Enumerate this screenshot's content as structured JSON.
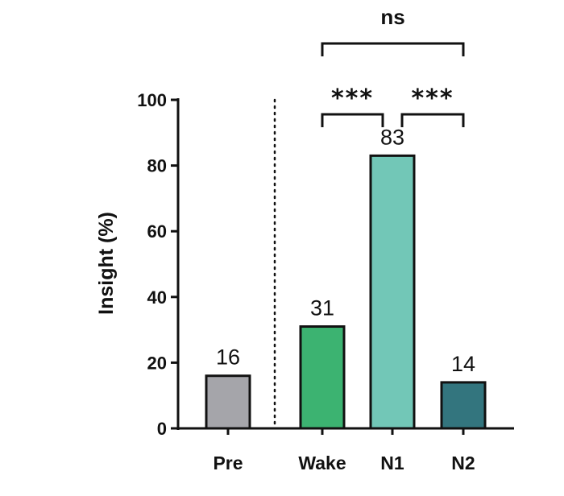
{
  "chart_data": {
    "type": "bar",
    "categories": [
      "Pre",
      "Wake",
      "N1",
      "N2"
    ],
    "values": [
      16,
      31,
      83,
      14
    ],
    "colors": [
      "#a5a5aa",
      "#3cb371",
      "#72c7b7",
      "#33757e"
    ],
    "ylabel": "Insight (%)",
    "xlabel": "",
    "title": "",
    "ylim": [
      0,
      100
    ],
    "yticks": [
      0,
      20,
      40,
      60,
      80,
      100
    ],
    "grid": false,
    "separator_after_category": "Pre",
    "significance": [
      {
        "from": "Wake",
        "to": "N1",
        "label": "***"
      },
      {
        "from": "N1",
        "to": "N2",
        "label": "***"
      },
      {
        "from": "Wake",
        "to": "N2",
        "label": "ns"
      }
    ]
  }
}
